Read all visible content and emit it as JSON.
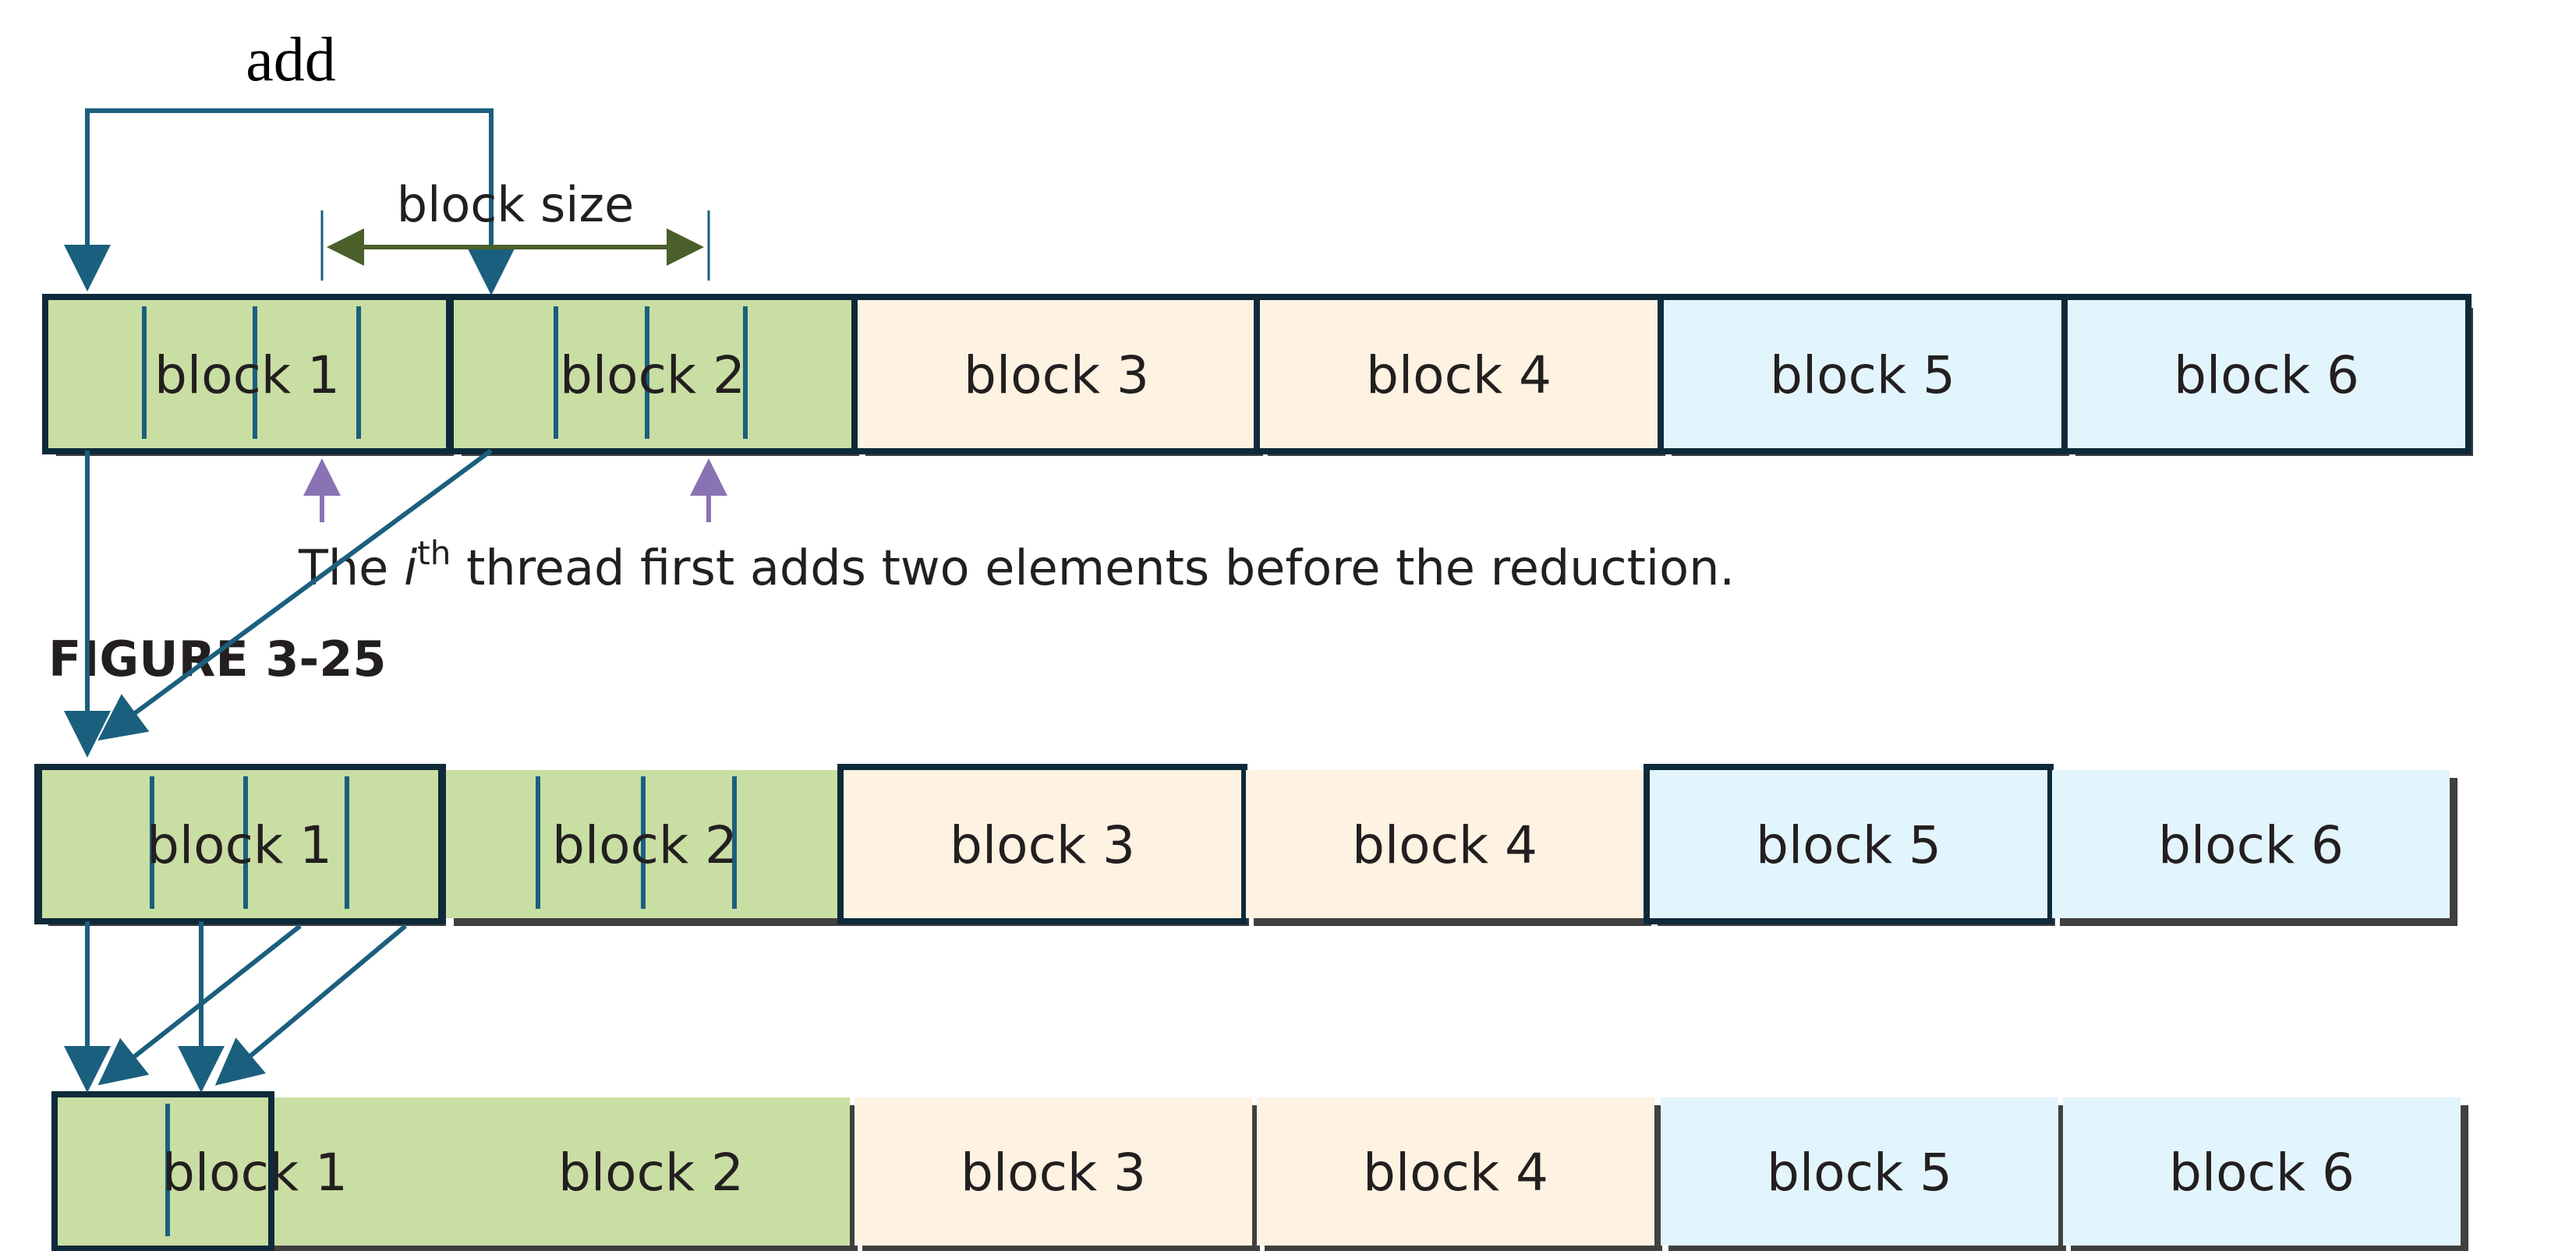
{
  "labels": {
    "add": "add",
    "block_size": "block size",
    "caption_prefix": "The ",
    "caption_i": "i",
    "caption_sup": "th",
    "caption_suffix": " thread first adds two elements before the reduction.",
    "figure": "FIGURE 3-25"
  },
  "colors": {
    "green_fill": "#c9dea3",
    "peach_fill": "#fef2e2",
    "blue_fill": "#e3f5fc",
    "shadow": "#404040",
    "outline": "#0e2a3a",
    "arrow_teal": "#1b5f7e",
    "arrow_olive": "#4b5f2a",
    "arrow_purple": "#8a73b3"
  },
  "rows": [
    {
      "blocks": [
        {
          "label": "block 1",
          "color": "green",
          "outlined": true
        },
        {
          "label": "block 2",
          "color": "green",
          "outlined": true
        },
        {
          "label": "block 3",
          "color": "peach",
          "outlined": true
        },
        {
          "label": "block 4",
          "color": "peach",
          "outlined": true
        },
        {
          "label": "block 5",
          "color": "blue",
          "outlined": true
        },
        {
          "label": "block 6",
          "color": "blue",
          "outlined": true
        }
      ]
    },
    {
      "blocks": [
        {
          "label": "block 1",
          "color": "green",
          "outlined": true
        },
        {
          "label": "block 2",
          "color": "green",
          "outlined": false
        },
        {
          "label": "block 3",
          "color": "peach",
          "outlined": true
        },
        {
          "label": "block 4",
          "color": "peach",
          "outlined": false
        },
        {
          "label": "block 5",
          "color": "blue",
          "outlined": true
        },
        {
          "label": "block 6",
          "color": "blue",
          "outlined": false
        }
      ]
    },
    {
      "blocks": [
        {
          "label": "block 1",
          "color": "green",
          "outlined": false
        },
        {
          "label": "block 2",
          "color": "green",
          "outlined": false
        },
        {
          "label": "block 3",
          "color": "peach",
          "outlined": false
        },
        {
          "label": "block 4",
          "color": "peach",
          "outlined": false
        },
        {
          "label": "block 5",
          "color": "blue",
          "outlined": false
        },
        {
          "label": "block 6",
          "color": "blue",
          "outlined": false
        }
      ]
    }
  ]
}
